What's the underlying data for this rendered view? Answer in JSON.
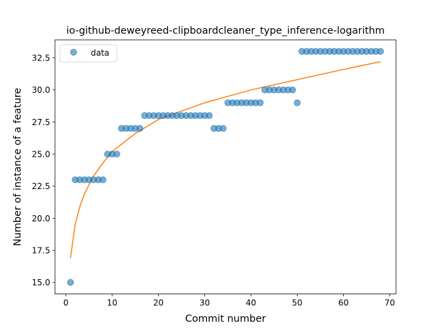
{
  "chart_data": {
    "type": "scatter",
    "title": "io-github-deweyreed-clipboardcleaner_type_inference-logarithm",
    "xlabel": "Commit number",
    "ylabel": "Number of instance of a feature",
    "xlim": [
      -2.35,
      71.35
    ],
    "ylim": [
      14.1,
      33.9
    ],
    "xticks": [
      0,
      10,
      20,
      30,
      40,
      50,
      60,
      70
    ],
    "xtick_labels": [
      "0",
      "10",
      "20",
      "30",
      "40",
      "50",
      "60",
      "70"
    ],
    "yticks": [
      15.0,
      17.5,
      20.0,
      22.5,
      25.0,
      27.5,
      30.0,
      32.5
    ],
    "ytick_labels": [
      "15.0",
      "17.5",
      "20.0",
      "22.5",
      "25.0",
      "27.5",
      "30.0",
      "32.5"
    ],
    "grid": false,
    "legend": {
      "placement": "top-left",
      "entries": [
        "data"
      ]
    },
    "series": [
      {
        "name": "data",
        "kind": "scatter",
        "color": "#1f77b4",
        "x": [
          1,
          2,
          3,
          4,
          5,
          6,
          7,
          8,
          9,
          10,
          11,
          12,
          13,
          14,
          15,
          16,
          17,
          18,
          19,
          20,
          21,
          22,
          23,
          24,
          25,
          26,
          27,
          28,
          29,
          30,
          31,
          32,
          33,
          34,
          35,
          36,
          37,
          38,
          39,
          40,
          41,
          42,
          43,
          44,
          45,
          46,
          47,
          48,
          49,
          50,
          51,
          52,
          53,
          54,
          55,
          56,
          57,
          58,
          59,
          60,
          61,
          62,
          63,
          64,
          65,
          66,
          67,
          68
        ],
        "y": [
          15,
          23,
          23,
          23,
          23,
          23,
          23,
          23,
          25,
          25,
          25,
          27,
          27,
          27,
          27,
          27,
          28,
          28,
          28,
          28,
          28,
          28,
          28,
          28,
          28,
          28,
          28,
          28,
          28,
          28,
          28,
          27,
          27,
          27,
          29,
          29,
          29,
          29,
          29,
          29,
          29,
          29,
          30,
          30,
          30,
          30,
          30,
          30,
          30,
          29,
          33,
          33,
          33,
          33,
          33,
          33,
          33,
          33,
          33,
          33,
          33,
          33,
          33,
          33,
          33,
          33,
          33,
          33
        ]
      },
      {
        "kind": "line",
        "color": "#ff7f0e",
        "fit": "logarithmic",
        "x": [
          1,
          2,
          3,
          4,
          6,
          8,
          10,
          15,
          20,
          30,
          40,
          50,
          60,
          68
        ],
        "y": [
          16.9,
          19.5,
          20.9,
          21.9,
          23.3,
          24.3,
          25.2,
          26.6,
          27.7,
          29.0,
          30.0,
          30.8,
          31.6,
          32.2
        ]
      }
    ]
  }
}
